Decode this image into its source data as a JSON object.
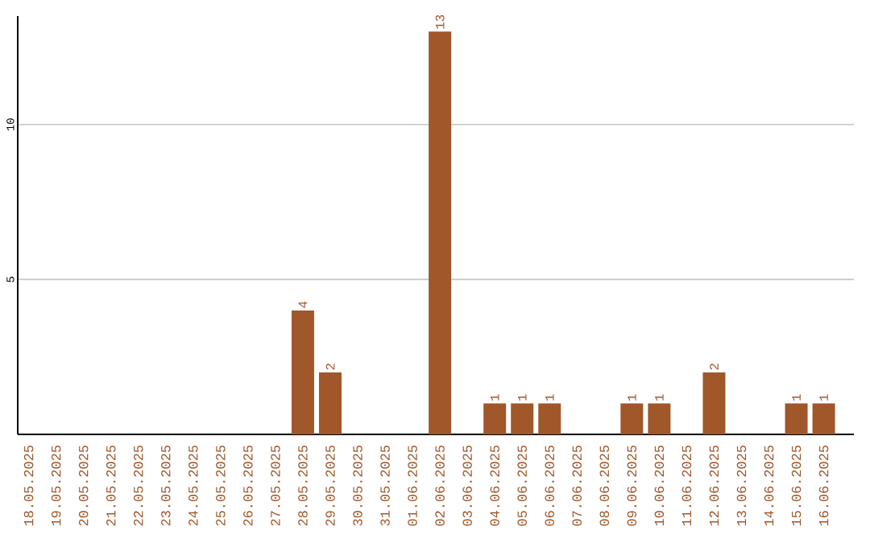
{
  "chart_data": {
    "type": "bar",
    "categories": [
      "18.05.2025",
      "19.05.2025",
      "20.05.2025",
      "21.05.2025",
      "22.05.2025",
      "23.05.2025",
      "24.05.2025",
      "25.05.2025",
      "26.05.2025",
      "27.05.2025",
      "28.05.2025",
      "29.05.2025",
      "30.05.2025",
      "31.05.2025",
      "01.06.2025",
      "02.06.2025",
      "03.06.2025",
      "04.06.2025",
      "05.06.2025",
      "06.06.2025",
      "07.06.2025",
      "08.06.2025",
      "09.06.2025",
      "10.06.2025",
      "11.06.2025",
      "12.06.2025",
      "13.06.2025",
      "14.06.2025",
      "15.06.2025",
      "16.06.2025"
    ],
    "values": [
      0,
      0,
      0,
      0,
      0,
      0,
      0,
      0,
      0,
      0,
      4,
      2,
      0,
      0,
      0,
      13,
      0,
      1,
      1,
      1,
      0,
      0,
      1,
      1,
      0,
      2,
      0,
      0,
      1,
      1
    ],
    "value_labels": [
      null,
      null,
      null,
      null,
      null,
      null,
      null,
      null,
      null,
      null,
      "4",
      "2",
      null,
      null,
      null,
      "13",
      null,
      "1",
      "1",
      "1",
      null,
      null,
      "1",
      "1",
      null,
      "2",
      null,
      null,
      "1",
      "1"
    ],
    "color": "#a0572a",
    "ylim": [
      0,
      13.5
    ],
    "yticks": [
      5,
      10
    ],
    "grid": "y"
  }
}
